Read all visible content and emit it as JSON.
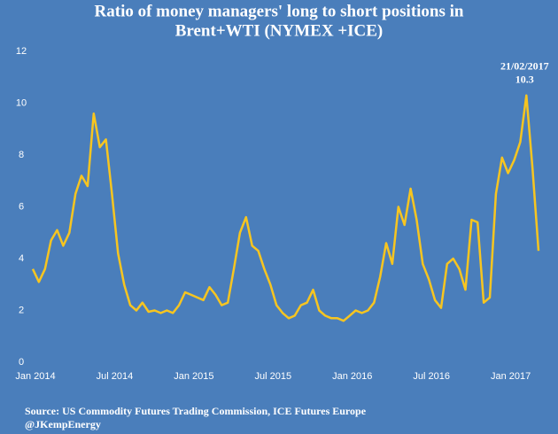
{
  "chart_data": {
    "type": "line",
    "title": "Ratio of money managers' long to short positions in",
    "subtitle": "Brent+WTI (NYMEX +ICE)",
    "categories": [
      "Jan 2014",
      null,
      null,
      null,
      null,
      null,
      null,
      null,
      null,
      null,
      null,
      null,
      null,
      "Jul 2014",
      null,
      null,
      null,
      null,
      null,
      null,
      null,
      null,
      null,
      null,
      null,
      null,
      "Jan 2015",
      null,
      null,
      null,
      null,
      null,
      null,
      null,
      null,
      null,
      null,
      null,
      null,
      "Jul 2015",
      null,
      null,
      null,
      null,
      null,
      null,
      null,
      null,
      null,
      null,
      null,
      null,
      "Jan 2016",
      null,
      null,
      null,
      null,
      null,
      null,
      null,
      null,
      null,
      null,
      null,
      null,
      "Jul 2016",
      null,
      null,
      null,
      null,
      null,
      null,
      null,
      null,
      null,
      null,
      null,
      null,
      "Jan 2017",
      null,
      null,
      null,
      null,
      null
    ],
    "series": [
      {
        "color": "#f7c520",
        "values": [
          3.6,
          3.1,
          3.6,
          4.7,
          5.1,
          4.5,
          5.0,
          6.5,
          7.2,
          6.8,
          9.6,
          8.3,
          8.6,
          6.5,
          4.2,
          3.0,
          2.2,
          2.0,
          2.3,
          1.95,
          2.0,
          1.9,
          2.0,
          1.9,
          2.2,
          2.7,
          2.6,
          2.5,
          2.4,
          2.9,
          2.6,
          2.2,
          2.3,
          3.6,
          5.0,
          5.6,
          4.5,
          4.3,
          3.6,
          3.0,
          2.2,
          1.9,
          1.7,
          1.8,
          2.2,
          2.3,
          2.8,
          2.0,
          1.8,
          1.7,
          1.7,
          1.6,
          1.8,
          2.0,
          1.9,
          2.0,
          2.3,
          3.3,
          4.6,
          3.8,
          6.0,
          5.3,
          6.7,
          5.5,
          3.8,
          3.2,
          2.4,
          2.1,
          3.8,
          4.0,
          3.6,
          2.8,
          5.5,
          5.4,
          2.3,
          2.5,
          6.5,
          7.9,
          7.3,
          7.8,
          8.5,
          10.3,
          7.5,
          4.3
        ]
      }
    ],
    "ylim": [
      0,
      12
    ],
    "yticks": [
      0,
      2,
      4,
      6,
      8,
      10,
      12
    ],
    "annotation": {
      "date": "21/02/2017",
      "value": 10.3
    },
    "source": "Source: US Commodity Futures Trading Commission, ICE Futures Europe",
    "credit": "@JKempEnergy"
  }
}
